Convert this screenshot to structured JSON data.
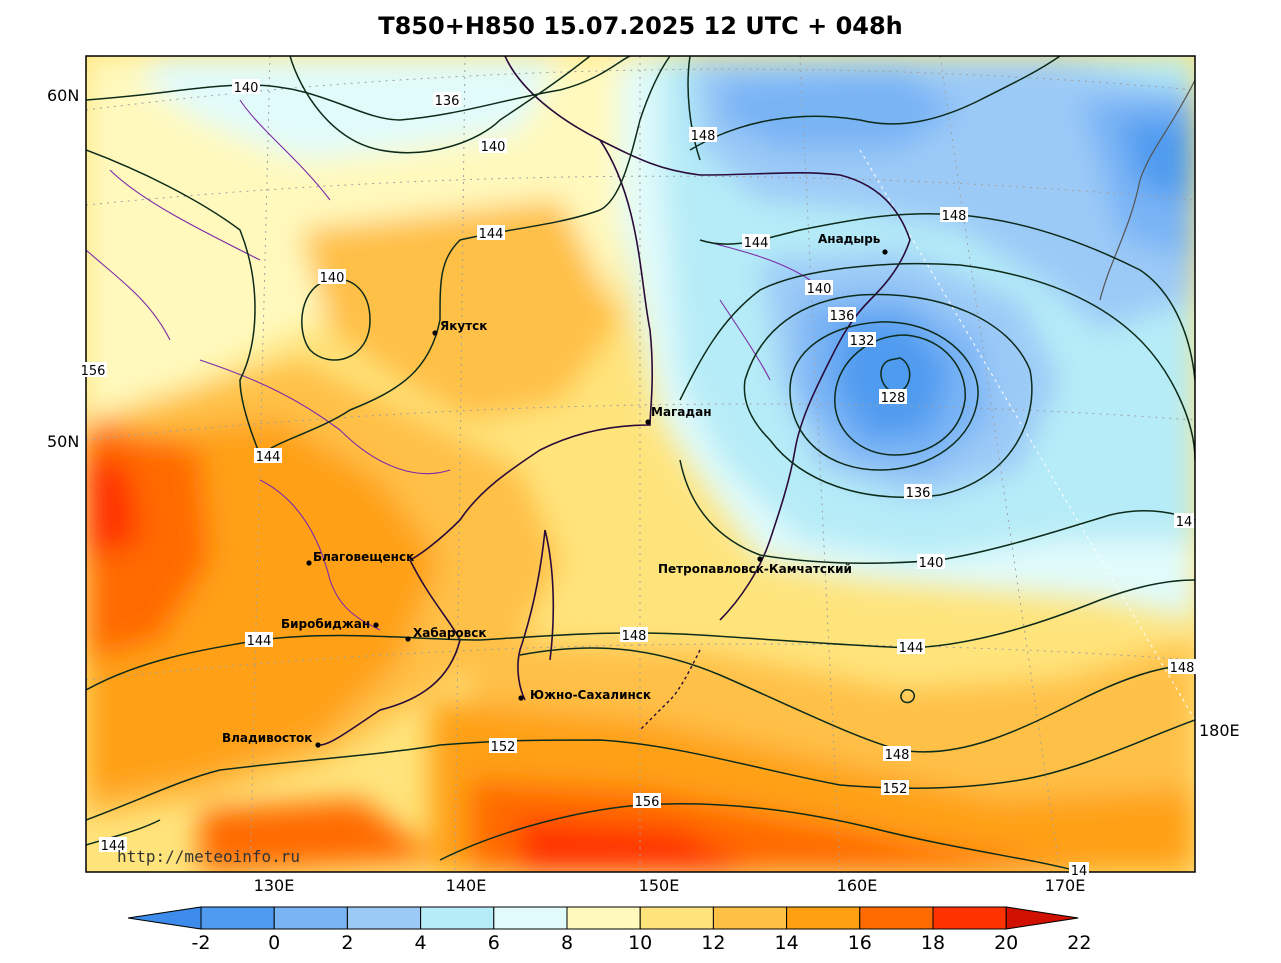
{
  "title": "T850+H850 15.07.2025 12 UTC + 048h",
  "watermark": "http://meteoinfo.ru",
  "lon_labels": [
    "130E",
    "140E",
    "150E",
    "160E",
    "170E"
  ],
  "lat_labels": [
    "60N",
    "50N"
  ],
  "extra_lon_label": "180E",
  "cities": [
    {
      "name": "Якутск"
    },
    {
      "name": "Анадырь"
    },
    {
      "name": "Магадан"
    },
    {
      "name": "Благовещенск"
    },
    {
      "name": "Биробиджан"
    },
    {
      "name": "Хабаровск"
    },
    {
      "name": "Петропавловск-Камчатский"
    },
    {
      "name": "Южно-Сахалинск"
    },
    {
      "name": "Владивосток"
    }
  ],
  "contour_labels": [
    "140",
    "136",
    "140",
    "148",
    "144",
    "144",
    "144",
    "140",
    "140",
    "136",
    "132",
    "128",
    "136",
    "140",
    "144",
    "144",
    "148",
    "148",
    "152",
    "148",
    "152",
    "156",
    "144",
    "148",
    "14",
    "14",
    "156"
  ],
  "colorbar": {
    "ticks": [
      "-2",
      "0",
      "2",
      "4",
      "6",
      "8",
      "10",
      "12",
      "14",
      "16",
      "18",
      "20",
      "22"
    ],
    "colors": [
      "#3d8bea",
      "#4f9bf0",
      "#79b4f5",
      "#9ccaf7",
      "#b6ecf7",
      "#e1fbfb",
      "#fff9bd",
      "#ffe47c",
      "#ffc046",
      "#ffa012",
      "#ff6b00",
      "#ff3300",
      "#d01000"
    ]
  }
}
